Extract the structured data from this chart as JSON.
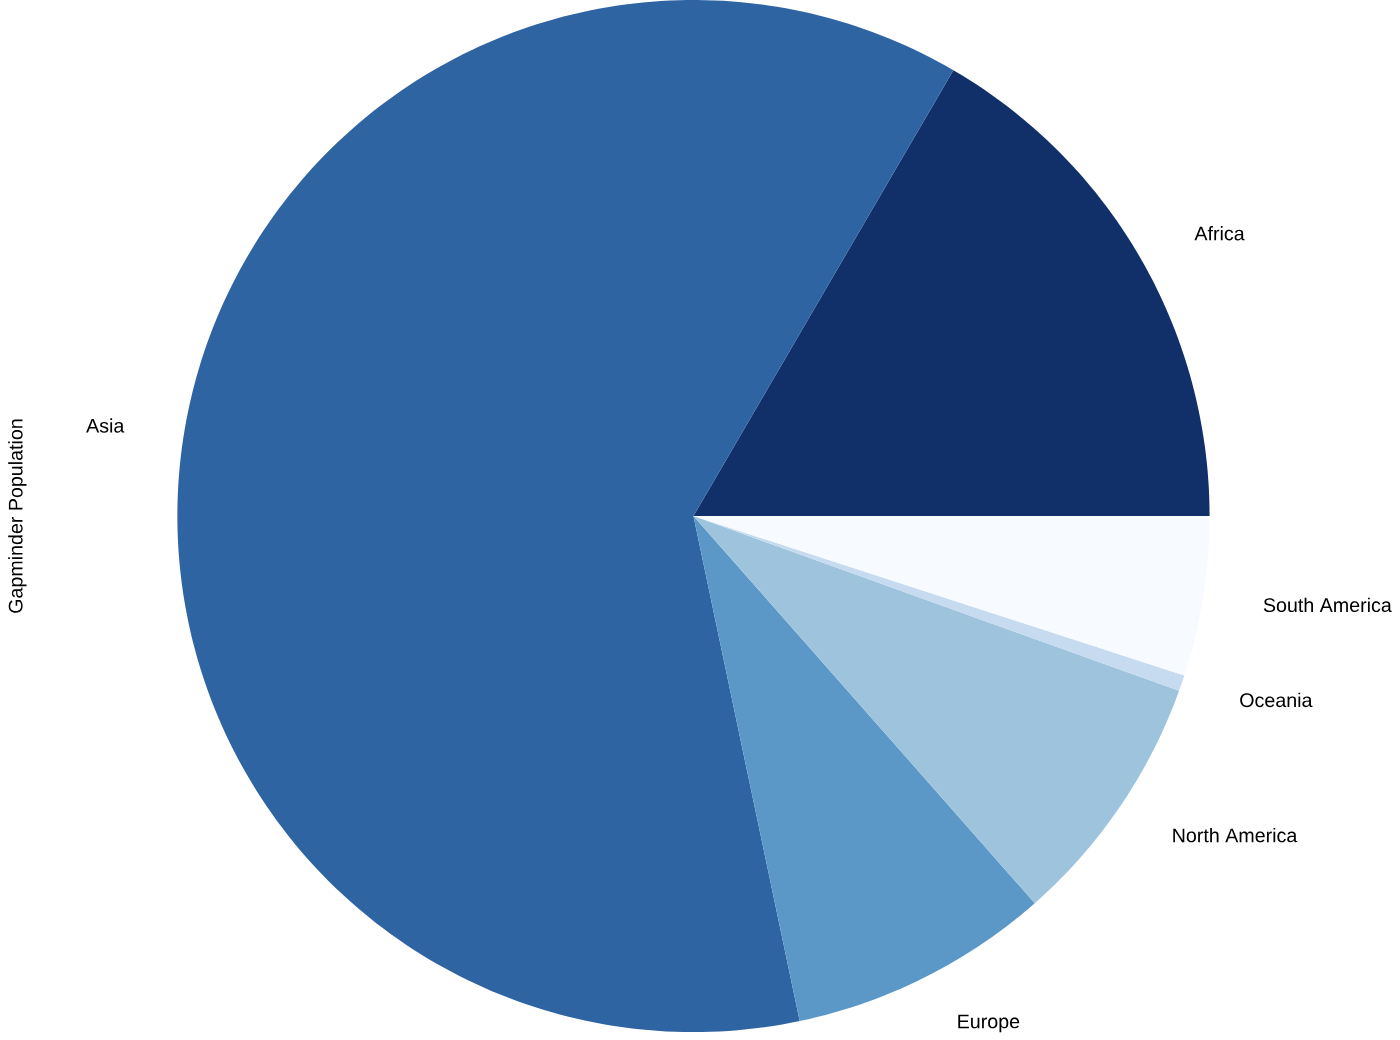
{
  "chart_data": {
    "type": "pie",
    "ylabel": "Gapminder Population",
    "categories": [
      "Africa",
      "Asia",
      "Europe",
      "North America",
      "Oceania",
      "South America"
    ],
    "values": [
      16.6,
      61.7,
      8.2,
      8.0,
      0.5,
      5.0
    ],
    "colors": [
      "#11306a",
      "#2f64a3",
      "#5b98c7",
      "#9dc3dd",
      "#c6dbef",
      "#f7fbff"
    ]
  }
}
